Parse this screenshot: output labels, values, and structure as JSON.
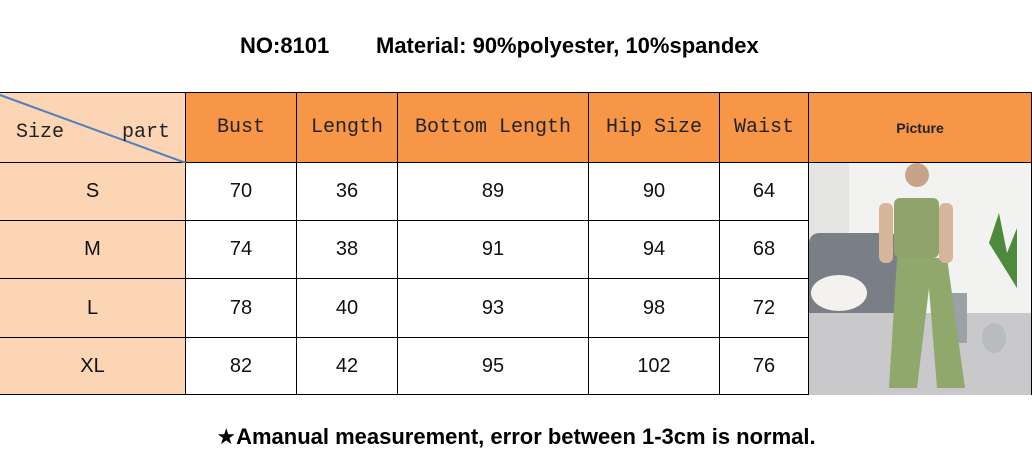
{
  "header": {
    "model": "NO:8101",
    "material": "Material: 90%polyester, 10%spandex"
  },
  "table": {
    "corner": {
      "row_label": "Size",
      "column_label": "part"
    },
    "columns": [
      "Bust",
      "Length",
      "Bottom Length",
      "Hip Size",
      "Waist",
      "Picture"
    ],
    "rows": [
      {
        "size": "S",
        "values": [
          70,
          36,
          89,
          90,
          64
        ]
      },
      {
        "size": "M",
        "values": [
          74,
          38,
          91,
          94,
          68
        ]
      },
      {
        "size": "L",
        "values": [
          78,
          40,
          93,
          98,
          72
        ]
      },
      {
        "size": "XL",
        "values": [
          82,
          42,
          95,
          102,
          76
        ]
      }
    ]
  },
  "footer": {
    "note": "★Amanual measurement, error between 1-3cm is normal."
  }
}
